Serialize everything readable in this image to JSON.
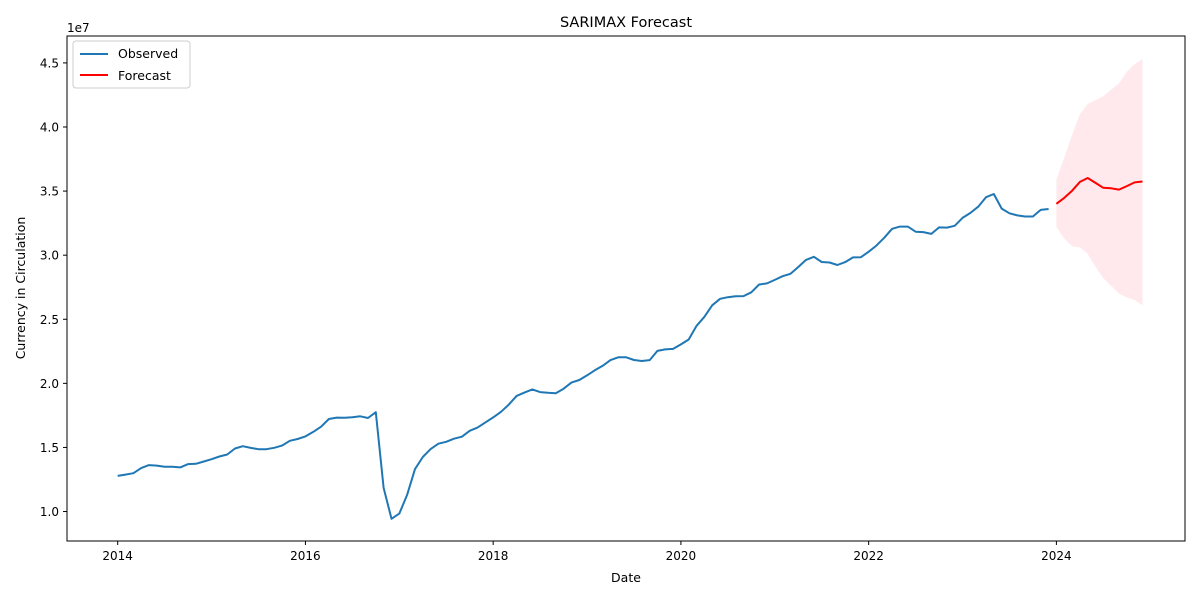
{
  "chart_data": {
    "type": "line",
    "title": "SARIMAX Forecast",
    "xlabel": "Date",
    "ylabel": "Currency in Circulation",
    "y_offset_label": "1e7",
    "xlim": [
      2013.46,
      2025.37
    ],
    "ylim": [
      7.7,
      47.1
    ],
    "x_ticks": [
      2014,
      2016,
      2018,
      2020,
      2022,
      2024
    ],
    "y_ticks": [
      10,
      15,
      20,
      25,
      30,
      35,
      40,
      45
    ],
    "y_tick_labels": [
      "1.0",
      "1.5",
      "2.0",
      "2.5",
      "3.0",
      "3.5",
      "4.0",
      "4.5"
    ],
    "grid": false,
    "legend": {
      "position": "top-left",
      "entries": [
        "Observed",
        "Forecast"
      ]
    },
    "colors": {
      "observed": "#1f77b4",
      "forecast": "#ff0000",
      "confidence_band": "#ffc0cb"
    },
    "series": [
      {
        "name": "Observed",
        "x": [
          2014.0,
          2014.083,
          2014.167,
          2014.25,
          2014.333,
          2014.417,
          2014.5,
          2014.583,
          2014.667,
          2014.75,
          2014.833,
          2014.917,
          2015.0,
          2015.083,
          2015.167,
          2015.25,
          2015.333,
          2015.417,
          2015.5,
          2015.583,
          2015.667,
          2015.75,
          2015.833,
          2015.917,
          2016.0,
          2016.083,
          2016.167,
          2016.25,
          2016.333,
          2016.417,
          2016.5,
          2016.583,
          2016.667,
          2016.75,
          2016.833,
          2016.917,
          2017.0,
          2017.083,
          2017.167,
          2017.25,
          2017.333,
          2017.417,
          2017.5,
          2017.583,
          2017.667,
          2017.75,
          2017.833,
          2017.917,
          2018.0,
          2018.083,
          2018.167,
          2018.25,
          2018.333,
          2018.417,
          2018.5,
          2018.583,
          2018.667,
          2018.75,
          2018.833,
          2018.917,
          2019.0,
          2019.083,
          2019.167,
          2019.25,
          2019.333,
          2019.417,
          2019.5,
          2019.583,
          2019.667,
          2019.75,
          2019.833,
          2019.917,
          2020.0,
          2020.083,
          2020.167,
          2020.25,
          2020.333,
          2020.417,
          2020.5,
          2020.583,
          2020.667,
          2020.75,
          2020.833,
          2020.917,
          2021.0,
          2021.083,
          2021.167,
          2021.25,
          2021.333,
          2021.417,
          2021.5,
          2021.583,
          2021.667,
          2021.75,
          2021.833,
          2021.917,
          2022.0,
          2022.083,
          2022.167,
          2022.25,
          2022.333,
          2022.417,
          2022.5,
          2022.583,
          2022.667,
          2022.75,
          2022.833,
          2022.917,
          2023.0,
          2023.083,
          2023.167,
          2023.25,
          2023.333,
          2023.417,
          2023.5,
          2023.583,
          2023.667,
          2023.75,
          2023.833,
          2023.917
        ],
        "values": [
          12.78,
          12.88,
          12.99,
          13.39,
          13.62,
          13.58,
          13.49,
          13.5,
          13.44,
          13.7,
          13.72,
          13.9,
          14.08,
          14.29,
          14.45,
          14.92,
          15.1,
          14.96,
          14.86,
          14.86,
          14.97,
          15.14,
          15.52,
          15.66,
          15.86,
          16.21,
          16.62,
          17.22,
          17.33,
          17.32,
          17.36,
          17.43,
          17.3,
          17.75,
          11.86,
          9.43,
          9.84,
          11.3,
          13.31,
          14.25,
          14.87,
          15.29,
          15.44,
          15.68,
          15.84,
          16.3,
          16.55,
          16.95,
          17.34,
          17.78,
          18.34,
          19.02,
          19.28,
          19.53,
          19.32,
          19.26,
          19.23,
          19.58,
          20.06,
          20.26,
          20.62,
          21.02,
          21.37,
          21.81,
          22.03,
          22.03,
          21.82,
          21.74,
          21.81,
          22.53,
          22.65,
          22.69,
          23.04,
          23.42,
          24.49,
          25.19,
          26.09,
          26.6,
          26.72,
          26.8,
          26.81,
          27.1,
          27.71,
          27.8,
          28.07,
          28.36,
          28.55,
          29.08,
          29.63,
          29.87,
          29.47,
          29.43,
          29.23,
          29.46,
          29.83,
          29.84,
          30.27,
          30.75,
          31.36,
          32.06,
          32.23,
          32.23,
          31.83,
          31.8,
          31.66,
          32.17,
          32.15,
          32.29,
          32.91,
          33.29,
          33.78,
          34.52,
          34.77,
          33.63,
          33.27,
          33.1,
          33.02,
          33.02,
          33.53,
          33.6
        ]
      },
      {
        "name": "Forecast",
        "x": [
          2024.0,
          2024.083,
          2024.167,
          2024.25,
          2024.333,
          2024.417,
          2024.5,
          2024.583,
          2024.667,
          2024.75,
          2024.833,
          2024.917
        ],
        "values": [
          34.01,
          34.47,
          35.03,
          35.72,
          36.02,
          35.64,
          35.26,
          35.22,
          35.12,
          35.39,
          35.68,
          35.75
        ],
        "lower": [
          32.2,
          31.3,
          30.7,
          30.6,
          30.1,
          29.1,
          28.2,
          27.6,
          27.0,
          26.7,
          26.5,
          26.1
        ],
        "upper": [
          35.9,
          37.6,
          39.4,
          41.0,
          41.8,
          42.1,
          42.4,
          42.9,
          43.4,
          44.3,
          44.9,
          45.3
        ]
      }
    ]
  }
}
